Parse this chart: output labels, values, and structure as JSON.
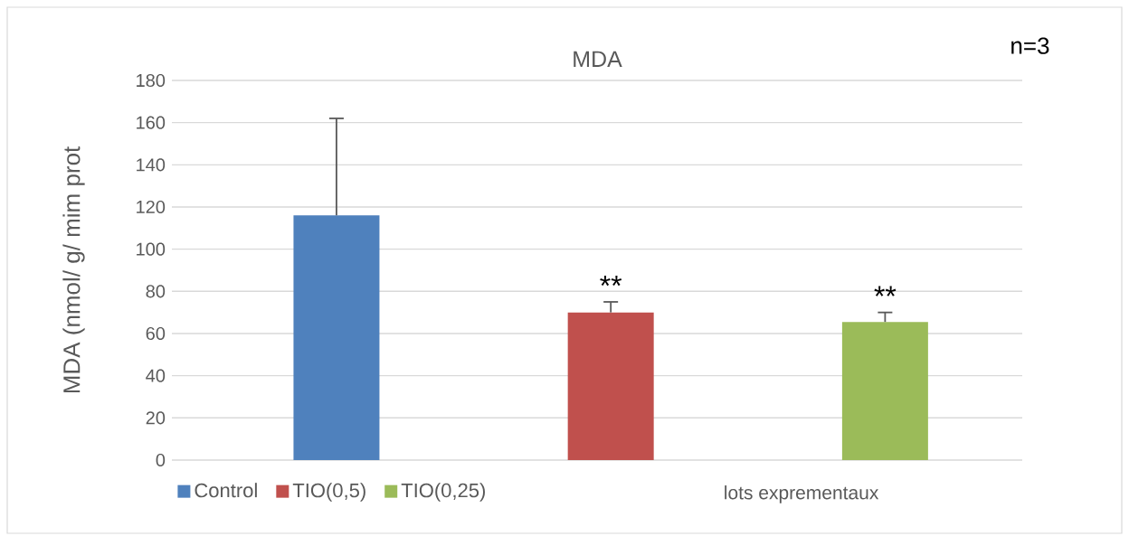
{
  "chart_data": {
    "type": "bar",
    "title": "MDA",
    "ylabel": "MDA  (nmol/ g/ mim prot",
    "xlabel": "lots  exprementaux",
    "annotations": [
      "n=3",
      "**",
      "**"
    ],
    "categories": [
      null,
      null,
      null
    ],
    "series": [
      {
        "name": "Control",
        "color": "#4f81bd",
        "values": [
          116,
          null,
          null
        ],
        "errors": [
          46,
          null,
          null
        ]
      },
      {
        "name": "TIO(0,5)",
        "color": "#c0504d",
        "values": [
          null,
          70,
          null
        ],
        "errors": [
          null,
          5,
          null
        ]
      },
      {
        "name": "TIO(0,25)",
        "color": "#9bbb59",
        "values": [
          null,
          null,
          65.5
        ],
        "errors": [
          null,
          null,
          4.5
        ]
      }
    ],
    "ylim": [
      0,
      180
    ],
    "yticks": [
      0,
      20,
      40,
      60,
      80,
      100,
      120,
      140,
      160,
      180
    ],
    "grid": "y",
    "legend": "bottom left"
  }
}
